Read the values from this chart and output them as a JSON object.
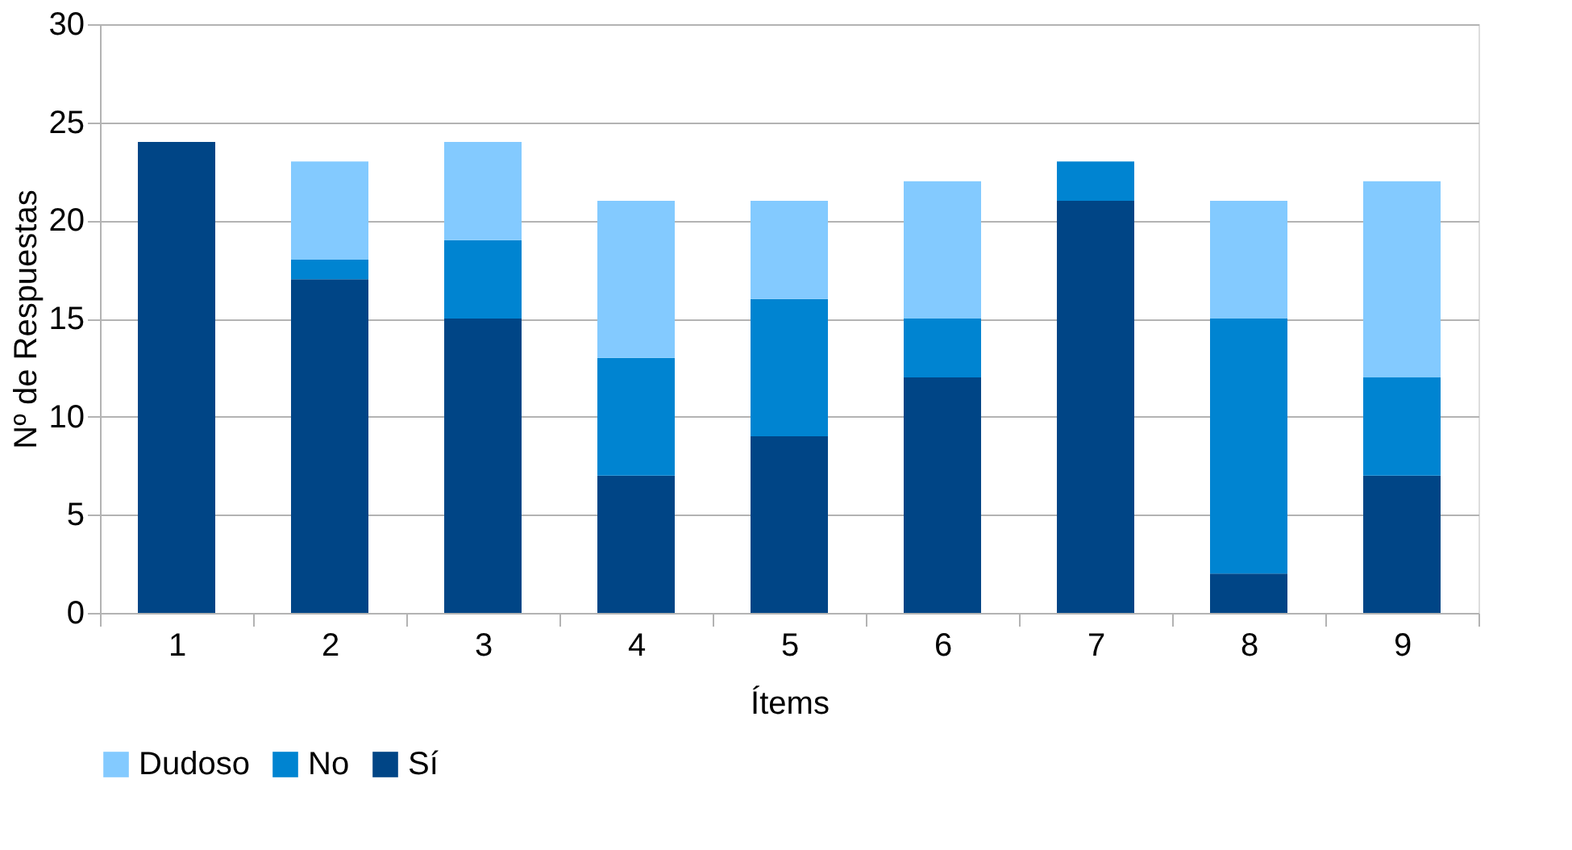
{
  "chart_data": {
    "type": "bar",
    "stacked": true,
    "xlabel": "Ítems",
    "ylabel": "Nº de Respuestas",
    "categories": [
      "1",
      "2",
      "3",
      "4",
      "5",
      "6",
      "7",
      "8",
      "9"
    ],
    "series": [
      {
        "name": "Sí",
        "color": "#004586",
        "values": [
          24,
          17,
          15,
          7,
          9,
          12,
          21,
          2,
          7
        ]
      },
      {
        "name": "No",
        "color": "#0084d1",
        "values": [
          0,
          1,
          4,
          6,
          7,
          3,
          2,
          13,
          5
        ]
      },
      {
        "name": "Dudoso",
        "color": "#83caff",
        "values": [
          0,
          5,
          5,
          8,
          5,
          7,
          0,
          6,
          10
        ]
      }
    ],
    "ylim": [
      0,
      30
    ],
    "yticks": [
      0,
      5,
      10,
      15,
      20,
      25,
      30
    ],
    "grid": "y",
    "legend": "bottom"
  }
}
